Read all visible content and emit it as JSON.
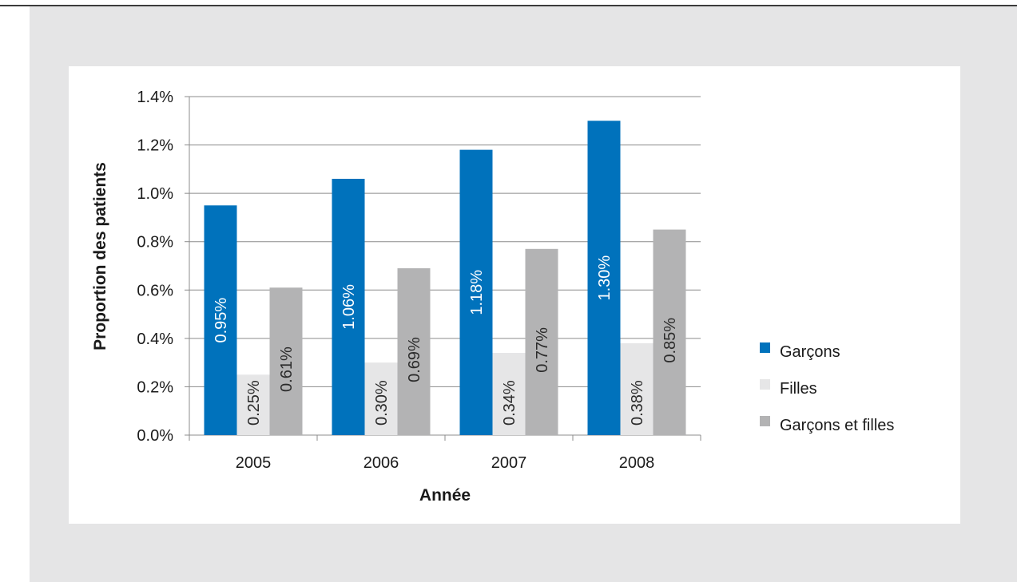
{
  "chart_data": {
    "type": "bar",
    "xlabel": "Année",
    "ylabel": "Proportion des patients",
    "categories": [
      "2005",
      "2006",
      "2007",
      "2008"
    ],
    "series": [
      {
        "name": "Garçons",
        "values": [
          0.95,
          1.06,
          1.18,
          1.3
        ],
        "labels": [
          "0.95%",
          "1.06%",
          "1.18%",
          "1.30%"
        ],
        "color": "#0072bc",
        "label_color": "#ffffff"
      },
      {
        "name": "Filles",
        "values": [
          0.25,
          0.3,
          0.34,
          0.38
        ],
        "labels": [
          "0.25%",
          "0.30%",
          "0.34%",
          "0.38%"
        ],
        "color": "#e6e6e7",
        "label_color": "#2b2b2b"
      },
      {
        "name": "Garçons et filles",
        "values": [
          0.61,
          0.69,
          0.77,
          0.85
        ],
        "labels": [
          "0.61%",
          "0.69%",
          "0.77%",
          "0.85%"
        ],
        "color": "#b3b3b4",
        "label_color": "#2b2b2b"
      }
    ],
    "yticks": [
      "0.0%",
      "0.2%",
      "0.4%",
      "0.6%",
      "0.8%",
      "1.0%",
      "1.2%",
      "1.4%"
    ],
    "ytick_values": [
      0,
      0.2,
      0.4,
      0.6,
      0.8,
      1.0,
      1.2,
      1.4
    ],
    "ylim": [
      0,
      1.4
    ],
    "grid": true,
    "legend_position": "right"
  }
}
